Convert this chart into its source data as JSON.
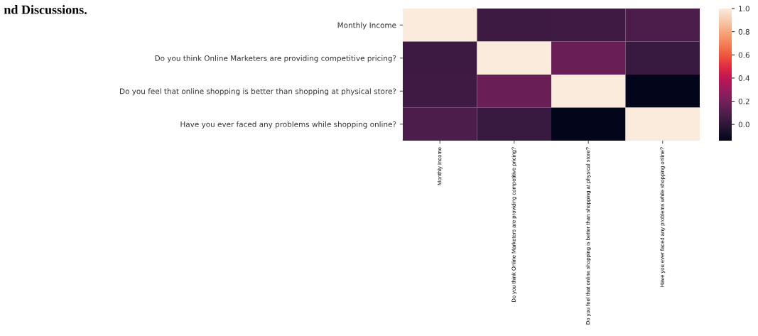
{
  "chart_data": {
    "type": "heatmap",
    "annotations": [
      "nd Discussions."
    ],
    "categories": [
      "Monthly Income",
      "Do you think Online Marketers are providing competitive pricing?",
      "Do you feel that online shopping is better than shopping at physical store?",
      "Have you ever faced any problems while shopping online?"
    ],
    "y_categories": [
      "Monthly Income",
      "Do you think Online Marketers are providing competitive pricing?",
      "Do you feel that online shopping is better than shopping at physical store?",
      "Have you ever faced any problems while shopping online?"
    ],
    "cells": [
      [
        1.0,
        0.04,
        0.05,
        0.09
      ],
      [
        0.04,
        1.0,
        0.17,
        0.03
      ],
      [
        0.05,
        0.17,
        1.0,
        -0.14
      ],
      [
        0.09,
        0.03,
        -0.14,
        1.0
      ]
    ],
    "clim": [
      -0.14,
      1.0
    ],
    "cticks": [
      {
        "value": 0.0,
        "label": "0.0"
      },
      {
        "value": 0.2,
        "label": "0.2"
      },
      {
        "value": 0.4,
        "label": "0.4"
      },
      {
        "value": 0.6,
        "label": "0.6"
      },
      {
        "value": 0.8,
        "label": "0.8"
      },
      {
        "value": 1.0,
        "label": "1.0"
      }
    ]
  }
}
